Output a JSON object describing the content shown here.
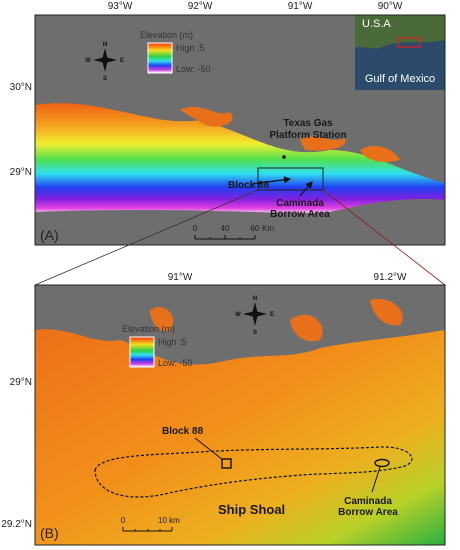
{
  "panel_a": {
    "label": "(A)",
    "lon_labels": [
      "93°W",
      "92°W",
      "91°W",
      "90°W"
    ],
    "lat_labels": [
      "30°N",
      "29°N"
    ],
    "legend": {
      "title": "Elevation (m)",
      "high": "High :5",
      "low": "Low: -50"
    },
    "compass": {
      "n": "N",
      "s": "S",
      "w": "W",
      "e": "E"
    },
    "inset": {
      "country": "U.S.A",
      "sea": "Gulf of Mexico"
    },
    "annotations": {
      "station": [
        "Texas Gas",
        "Platform Station"
      ],
      "block": "Block 88",
      "borrow": [
        "Caminada",
        "Borrow Area"
      ]
    },
    "scale_bar": {
      "ticks": [
        "0",
        "40",
        "60"
      ],
      "unit": "Km"
    }
  },
  "panel_b": {
    "label": "(B)",
    "lon_labels": [
      "91°W",
      "91.2°W"
    ],
    "lat_labels": [
      "29°N",
      "29.2°N"
    ],
    "legend": {
      "title": "Elevation (m)",
      "high": "High :5",
      "low": "Low: -50"
    },
    "compass": {
      "n": "N",
      "s": "S",
      "w": "W",
      "e": "E"
    },
    "annotations": {
      "block": "Block 88",
      "shoal": "Ship Shoal",
      "borrow": [
        "Caminada",
        "Borrow Area"
      ]
    },
    "scale_bar": {
      "ticks": [
        "0"
      ],
      "unit": "10 km"
    }
  }
}
